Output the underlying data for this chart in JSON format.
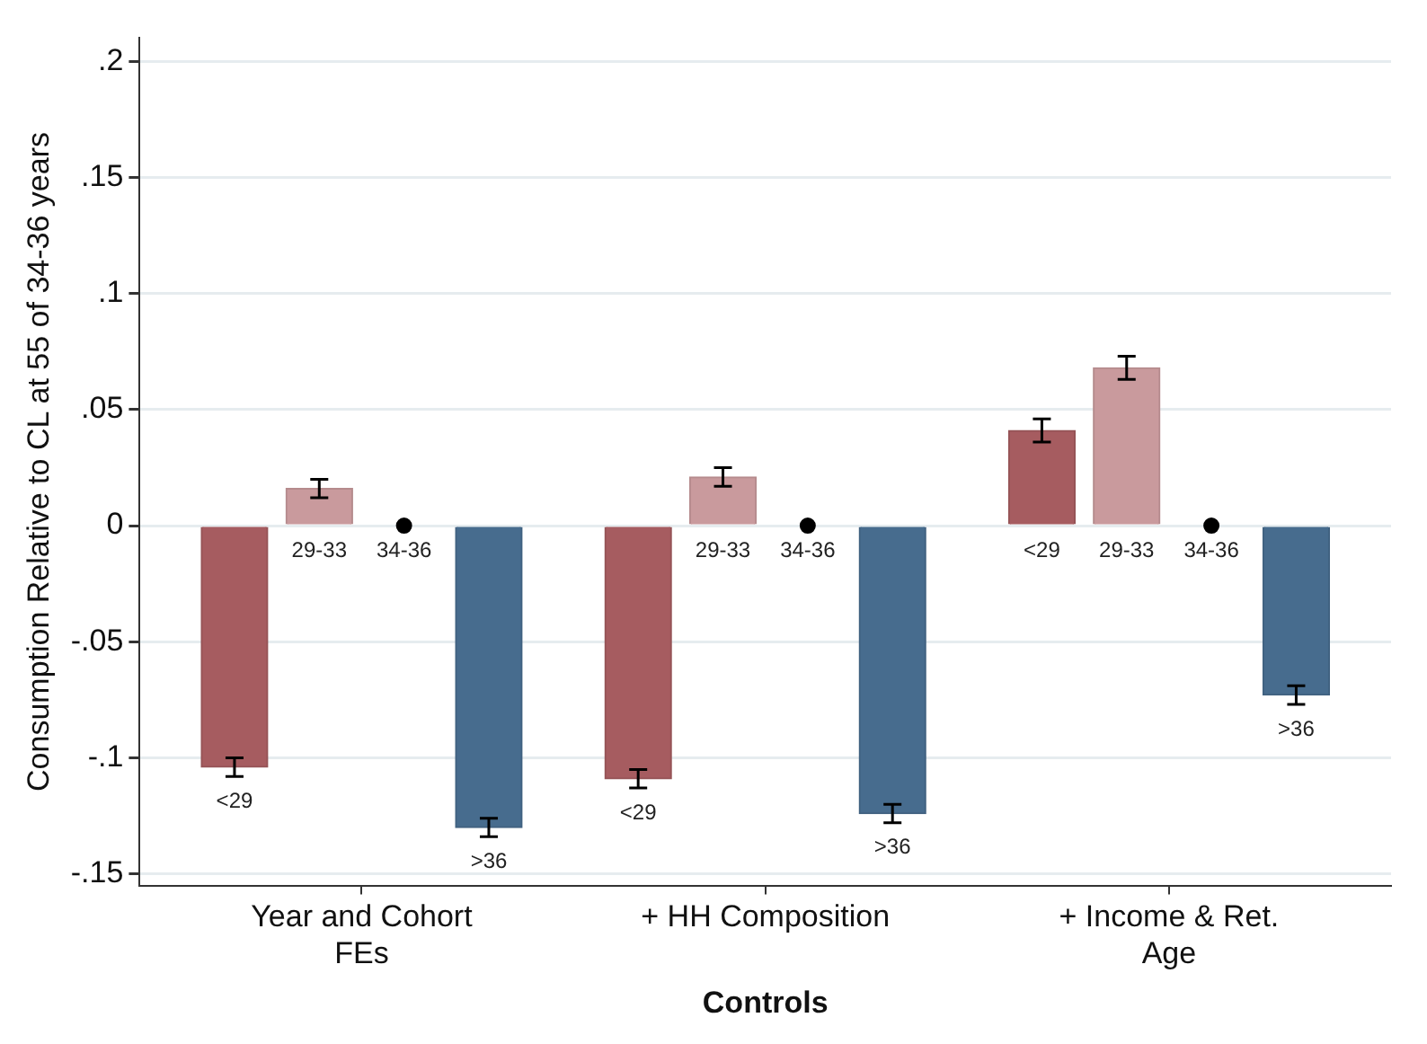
{
  "chart_data": {
    "type": "bar",
    "xlabel": "Controls",
    "ylabel": "Consumption Relative to CL at 55 of 34-36 years",
    "categories": [
      "Year and Cohort FEs",
      "+ HH Composition",
      "+ Income & Ret. Age"
    ],
    "series": [
      {
        "name": "<29",
        "color": "#a65c60",
        "values": [
          -0.104,
          -0.109,
          0.041
        ],
        "errors": [
          0.004,
          0.004,
          0.005
        ]
      },
      {
        "name": "29-33",
        "color": "#c99a9d",
        "values": [
          0.016,
          0.021,
          0.068
        ],
        "errors": [
          0.004,
          0.004,
          0.005
        ]
      },
      {
        "name": "34-36",
        "type": "scatter",
        "color": "#000000",
        "values": [
          0,
          0,
          0
        ]
      },
      {
        "name": ">36",
        "color": "#476c8e",
        "values": [
          -0.13,
          -0.124,
          -0.073
        ],
        "errors": [
          0.004,
          0.004,
          0.004
        ]
      }
    ],
    "ylim": [
      -0.155,
      0.21
    ],
    "yticks": [
      {
        "value": -0.15,
        "label": "-.15"
      },
      {
        "value": -0.1,
        "label": "-.1"
      },
      {
        "value": -0.05,
        "label": "-.05"
      },
      0,
      {
        "value": 0.05,
        "label": ".05"
      },
      {
        "value": 0.1,
        "label": ".1"
      },
      {
        "value": 0.15,
        "label": ".15"
      },
      {
        "value": 0.2,
        "label": ".2"
      }
    ],
    "grid": "y",
    "legend": false
  }
}
